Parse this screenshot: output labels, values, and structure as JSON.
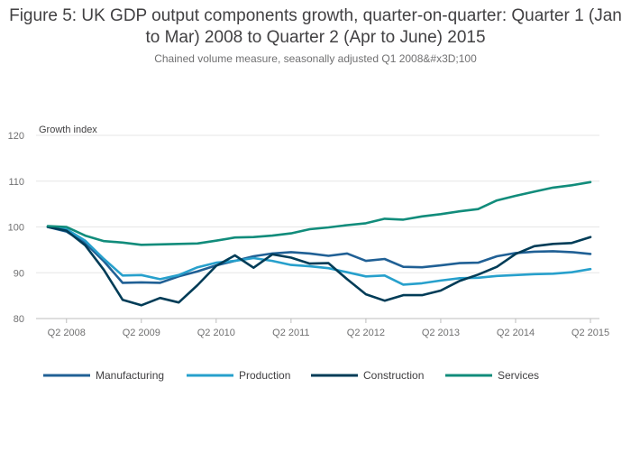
{
  "chart_data": {
    "type": "line",
    "title": "Figure 5: UK GDP output components growth, quarter-on-quarter: Quarter 1 (Jan to Mar) 2008 to Quarter 2 (Apr to June) 2015",
    "subtitle": "Chained volume measure, seasonally adjusted Q1 2008&#x3D;100",
    "ylabel": "Growth index",
    "xlabel": "",
    "ylim": [
      80,
      120
    ],
    "yticks": [
      80,
      90,
      100,
      110,
      120
    ],
    "x": [
      "Q1 2008",
      "Q2 2008",
      "Q3 2008",
      "Q4 2008",
      "Q1 2009",
      "Q2 2009",
      "Q3 2009",
      "Q4 2009",
      "Q1 2010",
      "Q2 2010",
      "Q3 2010",
      "Q4 2010",
      "Q1 2011",
      "Q2 2011",
      "Q3 2011",
      "Q4 2011",
      "Q1 2012",
      "Q2 2012",
      "Q3 2012",
      "Q4 2012",
      "Q1 2013",
      "Q2 2013",
      "Q3 2013",
      "Q4 2013",
      "Q1 2014",
      "Q2 2014",
      "Q3 2014",
      "Q4 2014",
      "Q1 2015",
      "Q2 2015"
    ],
    "xtick_labels": [
      "Q2 2008",
      "Q2 2009",
      "Q2 2010",
      "Q2 2011",
      "Q2 2012",
      "Q2 2013",
      "Q2 2014",
      "Q2 2015"
    ],
    "grid": true,
    "legend_position": "bottom",
    "series": [
      {
        "name": "Manufacturing",
        "color": "#206095",
        "values": [
          100.0,
          99.0,
          96.5,
          92.5,
          87.8,
          87.9,
          87.8,
          89.2,
          90.3,
          91.6,
          92.6,
          93.6,
          94.2,
          94.5,
          94.2,
          93.7,
          94.2,
          92.6,
          93.0,
          91.3,
          91.2,
          91.6,
          92.1,
          92.2,
          93.6,
          94.3,
          94.6,
          94.7,
          94.5,
          94.1
        ]
      },
      {
        "name": "Production",
        "color": "#27A0CC",
        "values": [
          100.0,
          99.5,
          97.0,
          93.0,
          89.4,
          89.5,
          88.6,
          89.5,
          91.2,
          92.2,
          92.6,
          93.2,
          92.6,
          91.7,
          91.4,
          91.0,
          90.1,
          89.2,
          89.4,
          87.4,
          87.7,
          88.3,
          88.8,
          88.9,
          89.3,
          89.5,
          89.7,
          89.8,
          90.1,
          90.8
        ]
      },
      {
        "name": "Construction",
        "color": "#003C57",
        "values": [
          100.0,
          99.2,
          96.0,
          90.6,
          84.1,
          82.9,
          84.5,
          83.5,
          87.3,
          91.5,
          93.8,
          91.1,
          94.0,
          93.3,
          92.0,
          92.1,
          88.6,
          85.3,
          83.9,
          85.1,
          85.1,
          86.1,
          88.2,
          89.6,
          91.3,
          94.1,
          95.8,
          96.3,
          96.5,
          97.8
        ]
      },
      {
        "name": "Services",
        "color": "#118C7B",
        "values": [
          100.2,
          100.0,
          98.1,
          96.9,
          96.6,
          96.1,
          96.2,
          96.3,
          96.4,
          97.0,
          97.7,
          97.8,
          98.1,
          98.6,
          99.5,
          99.9,
          100.4,
          100.8,
          101.8,
          101.6,
          102.3,
          102.8,
          103.4,
          103.9,
          105.8,
          106.8,
          107.7,
          108.6,
          109.1,
          109.8
        ]
      }
    ]
  }
}
